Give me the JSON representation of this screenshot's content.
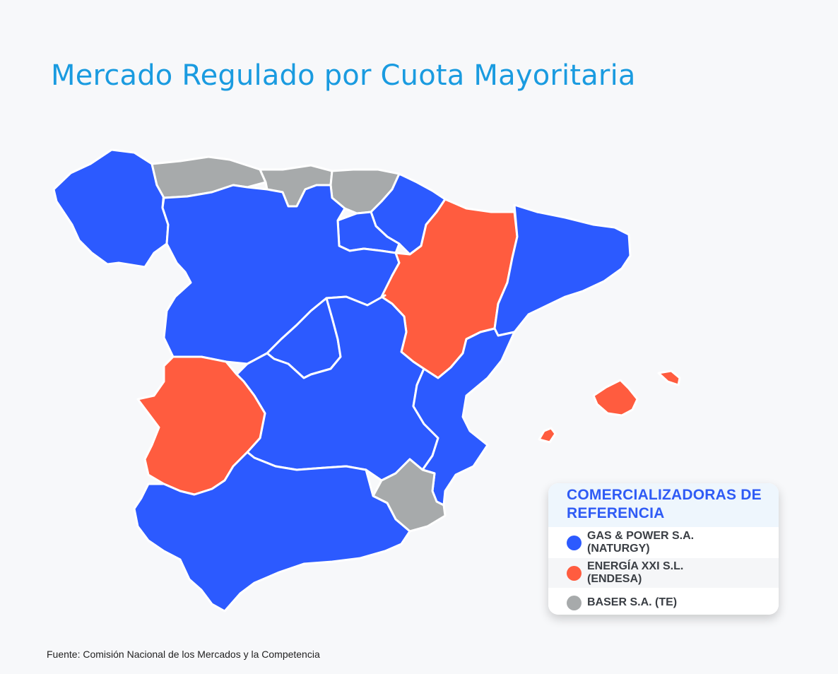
{
  "title": "Mercado Regulado por Cuota Mayoritaria",
  "legend": {
    "title": "COMERCIALIZADORAS DE REFERENCIA",
    "items": [
      {
        "label": "GAS & POWER S.A. (NATURGY)",
        "color": "#2c5aff"
      },
      {
        "label": "ENERGÍA XXI S.L. (ENDESA)",
        "color": "#ff5c3f"
      },
      {
        "label": "BASER S.A. (TE)",
        "color": "#a7aaab"
      }
    ]
  },
  "colors": {
    "naturgy": "#2c5aff",
    "endesa": "#ff5c3f",
    "baser": "#a7aaab",
    "title": "#1a9be0",
    "background": "#f7f8fa"
  },
  "source": "Fuente: Comisión Nacional de los Mercados y la Competencia"
}
